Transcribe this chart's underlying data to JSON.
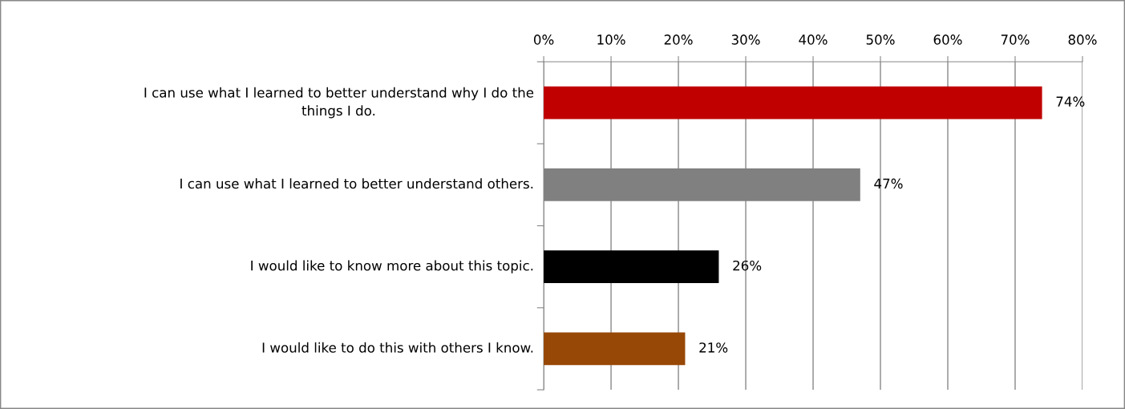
{
  "chart_data": {
    "type": "bar",
    "orientation": "horizontal",
    "categories": [
      "I can use what I learned to better understand why I do the things I do.",
      "I can use what I learned to better understand others.",
      "I would like to know more about this topic.",
      "I would like to do this with others I know."
    ],
    "values": [
      74,
      47,
      26,
      21
    ],
    "colors": [
      "#c00000",
      "#808080",
      "#000000",
      "#974706"
    ],
    "value_labels": [
      "74%",
      "47%",
      "26%",
      "21%"
    ],
    "xlim": [
      0,
      80
    ],
    "xticks": [
      {
        "value": 0,
        "label": "0%"
      },
      {
        "value": 10,
        "label": "10%"
      },
      {
        "value": 20,
        "label": "20%"
      },
      {
        "value": 30,
        "label": "30%"
      },
      {
        "value": 40,
        "label": "40%"
      },
      {
        "value": 50,
        "label": "50%"
      },
      {
        "value": 60,
        "label": "60%"
      },
      {
        "value": 70,
        "label": "70%"
      },
      {
        "value": 80,
        "label": "80%"
      }
    ],
    "grid": "x"
  }
}
